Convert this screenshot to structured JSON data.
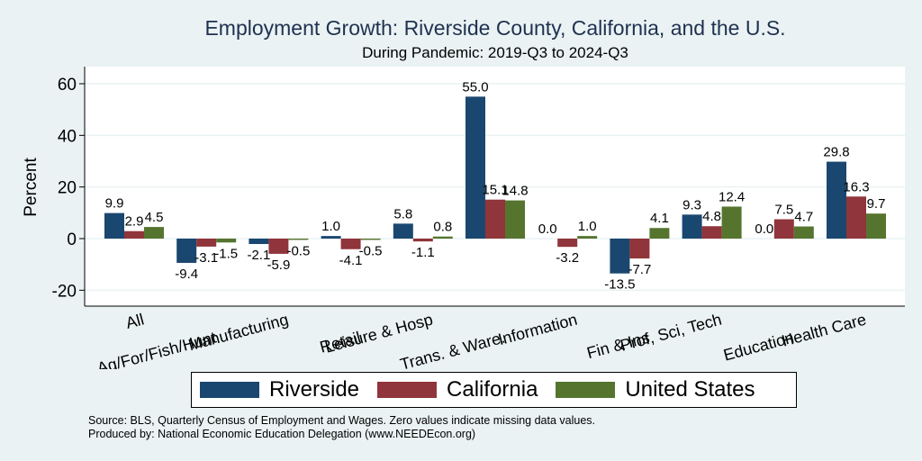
{
  "chart_data": {
    "type": "bar",
    "title": "Employment Growth: Riverside County, California, and the U.S.",
    "subtitle": "During Pandemic: 2019-Q3 to 2024-Q3",
    "xlabel": "",
    "ylabel": "Percent",
    "ylim": [
      -26.5,
      66
    ],
    "yticks": [
      -20,
      0,
      20,
      40,
      60
    ],
    "grid": true,
    "legend_position": "bottom",
    "categories": [
      "All",
      "Ag/For/Fish/Hunt",
      "Manufacturing",
      "Retail",
      "Leisure & Hosp",
      "Trans. & Ware.",
      "Information",
      "Fin & Ins",
      "Prof, Sci, Tech",
      "Education",
      "Health Care"
    ],
    "series": [
      {
        "name": "Riverside",
        "color": "#1a476f",
        "values": [
          9.9,
          -9.4,
          -2.1,
          1.0,
          5.8,
          55.0,
          0.0,
          -13.5,
          9.3,
          0.0,
          29.8
        ]
      },
      {
        "name": "California",
        "color": "#90353b",
        "values": [
          2.9,
          -3.1,
          -5.9,
          -4.1,
          -1.1,
          15.1,
          -3.2,
          -7.7,
          4.8,
          7.5,
          16.3
        ]
      },
      {
        "name": "United States",
        "color": "#55752f",
        "values": [
          4.5,
          -1.5,
          -0.5,
          -0.5,
          0.8,
          14.8,
          1.0,
          4.1,
          12.4,
          4.7,
          9.7
        ]
      }
    ],
    "notes": [
      "Source: BLS, Quarterly Census of Employment and Wages. Zero values indicate missing data values.",
      "Produced by: National Economic Education Delegation (www.NEEDEcon.org)"
    ]
  }
}
